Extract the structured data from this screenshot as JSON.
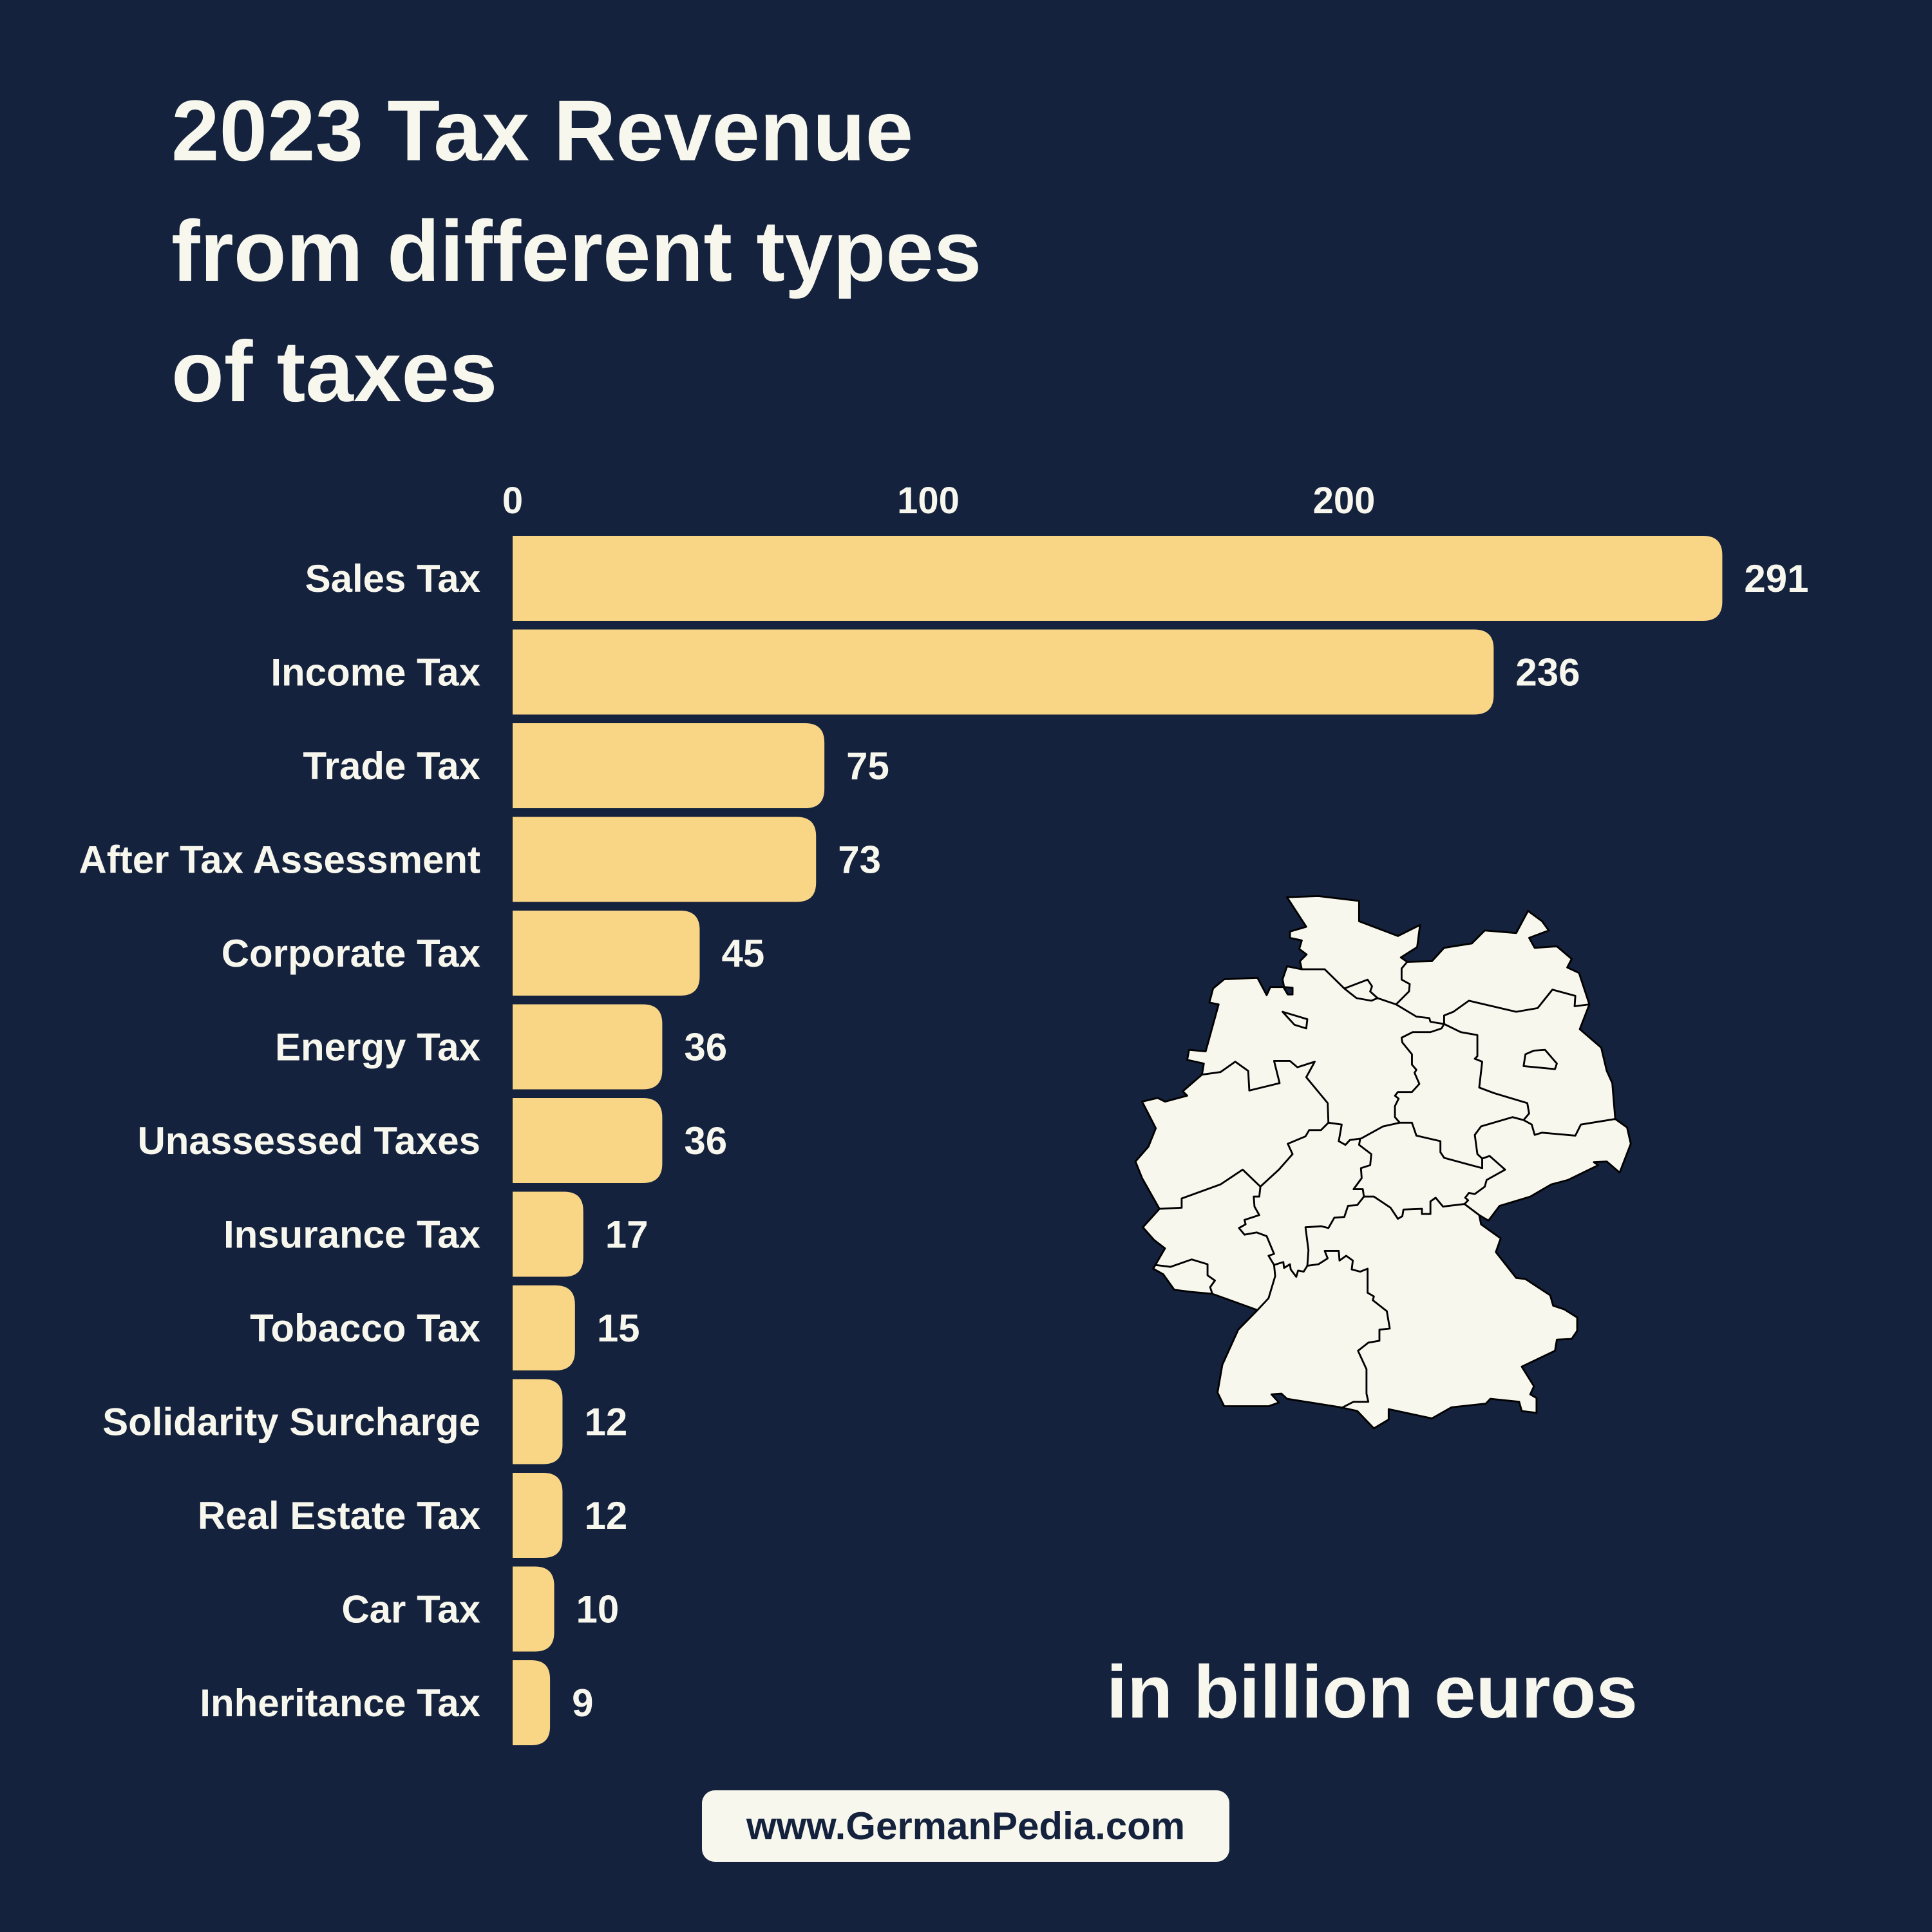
{
  "title_lines": [
    "2023 Tax Revenue",
    "from different types",
    "of taxes"
  ],
  "unit_label": "in billion euros",
  "website": "www.GermanPedia.com",
  "colors": {
    "background": "#15223d",
    "bar": "#f9d586",
    "text": "#f7f7ee",
    "map_fill": "#f7f7ee",
    "map_border": "#000000"
  },
  "map_icon": "germany-states-map",
  "chart_data": {
    "type": "bar",
    "orientation": "horizontal",
    "title": "2023 Tax Revenue from different types of taxes",
    "xlabel": "",
    "ylabel": "",
    "unit": "in billion euros",
    "xlim": [
      0,
      291
    ],
    "xticks": [
      0,
      100,
      200
    ],
    "grid": false,
    "categories": [
      "Sales Tax",
      "Income Tax",
      "Trade Tax",
      "After Tax Assessment",
      "Corporate Tax",
      "Energy Tax",
      "Unassessed Taxes",
      "Insurance Tax",
      "Tobacco Tax",
      "Solidarity Surcharge",
      "Real Estate Tax",
      "Car Tax",
      "Inheritance Tax"
    ],
    "values": [
      291,
      236,
      75,
      73,
      45,
      36,
      36,
      17,
      15,
      12,
      12,
      10,
      9
    ]
  }
}
